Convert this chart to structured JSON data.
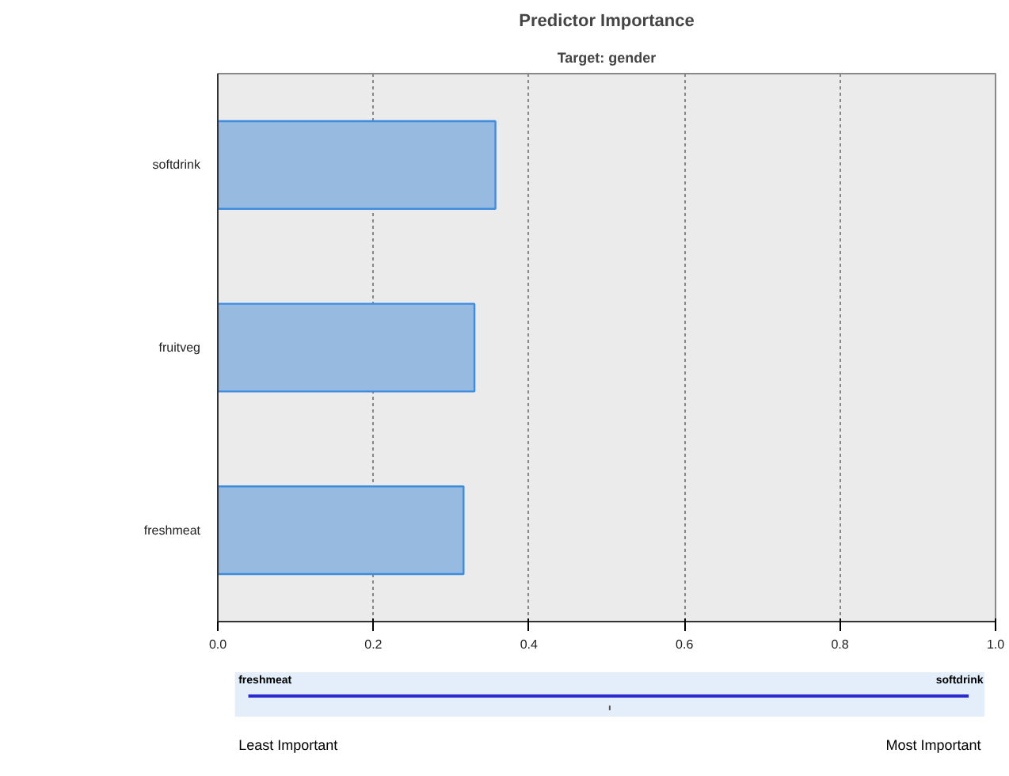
{
  "chart_data": {
    "type": "bar",
    "orientation": "horizontal",
    "title": "Predictor Importance",
    "subtitle": "Target: gender",
    "categories": [
      "softdrink",
      "fruitveg",
      "freshmeat"
    ],
    "values": [
      0.357,
      0.33,
      0.316
    ],
    "color": "#96bae0",
    "xlim": [
      0,
      1
    ],
    "xticks": [
      {
        "value": 0,
        "label": "0.0"
      },
      {
        "value": 0.2,
        "label": "0.2"
      },
      {
        "value": 0.4,
        "label": "0.4"
      },
      {
        "value": 0.6,
        "label": "0.6"
      },
      {
        "value": 0.8,
        "label": "0.8"
      },
      {
        "value": 1,
        "label": "1.0"
      }
    ],
    "grid": "x",
    "annotations": [
      "freshmeat",
      "softdrink",
      "Least Important",
      "Most Important"
    ]
  }
}
